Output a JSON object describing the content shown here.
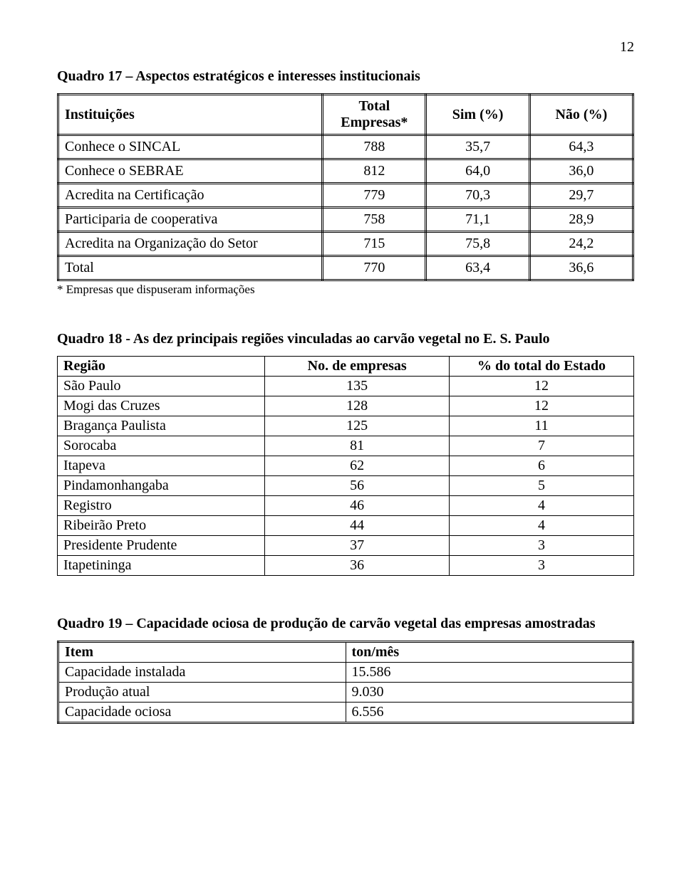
{
  "page_number": "12",
  "quadro17": {
    "title": "Quadro 17 – Aspectos estratégicos e interesses institucionais",
    "headers": [
      "Instituições",
      "Total Empresas*",
      "Sim (%)",
      "Não (%)"
    ],
    "rows": [
      [
        "Conhece o SINCAL",
        "788",
        "35,7",
        "64,3"
      ],
      [
        "Conhece o SEBRAE",
        "812",
        "64,0",
        "36,0"
      ],
      [
        "Acredita na Certificação",
        "779",
        "70,3",
        "29,7"
      ],
      [
        "Participaria de cooperativa",
        "758",
        "71,1",
        "28,9"
      ],
      [
        "Acredita na Organização do Setor",
        "715",
        "75,8",
        "24,2"
      ],
      [
        "Total",
        "770",
        "63,4",
        "36,6"
      ]
    ],
    "footnote": "* Empresas que dispuseram informações"
  },
  "quadro18": {
    "title": "Quadro 18 - As dez principais regiões vinculadas ao carvão vegetal no E. S. Paulo",
    "headers": [
      "Região",
      "No. de empresas",
      "% do total do Estado"
    ],
    "rows": [
      [
        "São Paulo",
        "135",
        "12"
      ],
      [
        "Mogi das Cruzes",
        "128",
        "12"
      ],
      [
        "Bragança Paulista",
        "125",
        "11"
      ],
      [
        "Sorocaba",
        "81",
        "7"
      ],
      [
        "Itapeva",
        "62",
        "6"
      ],
      [
        "Pindamonhangaba",
        "56",
        "5"
      ],
      [
        "Registro",
        "46",
        "4"
      ],
      [
        "Ribeirão Preto",
        "44",
        "4"
      ],
      [
        "Presidente Prudente",
        "37",
        "3"
      ],
      [
        "Itapetininga",
        "36",
        "3"
      ]
    ]
  },
  "quadro19": {
    "title": "Quadro 19 – Capacidade ociosa de produção de carvão vegetal das empresas amostradas",
    "headers": [
      "Item",
      "ton/mês"
    ],
    "rows": [
      [
        "Capacidade instalada",
        "15.586"
      ],
      [
        "Produção atual",
        "9.030"
      ],
      [
        "Capacidade ociosa",
        "6.556"
      ]
    ]
  }
}
